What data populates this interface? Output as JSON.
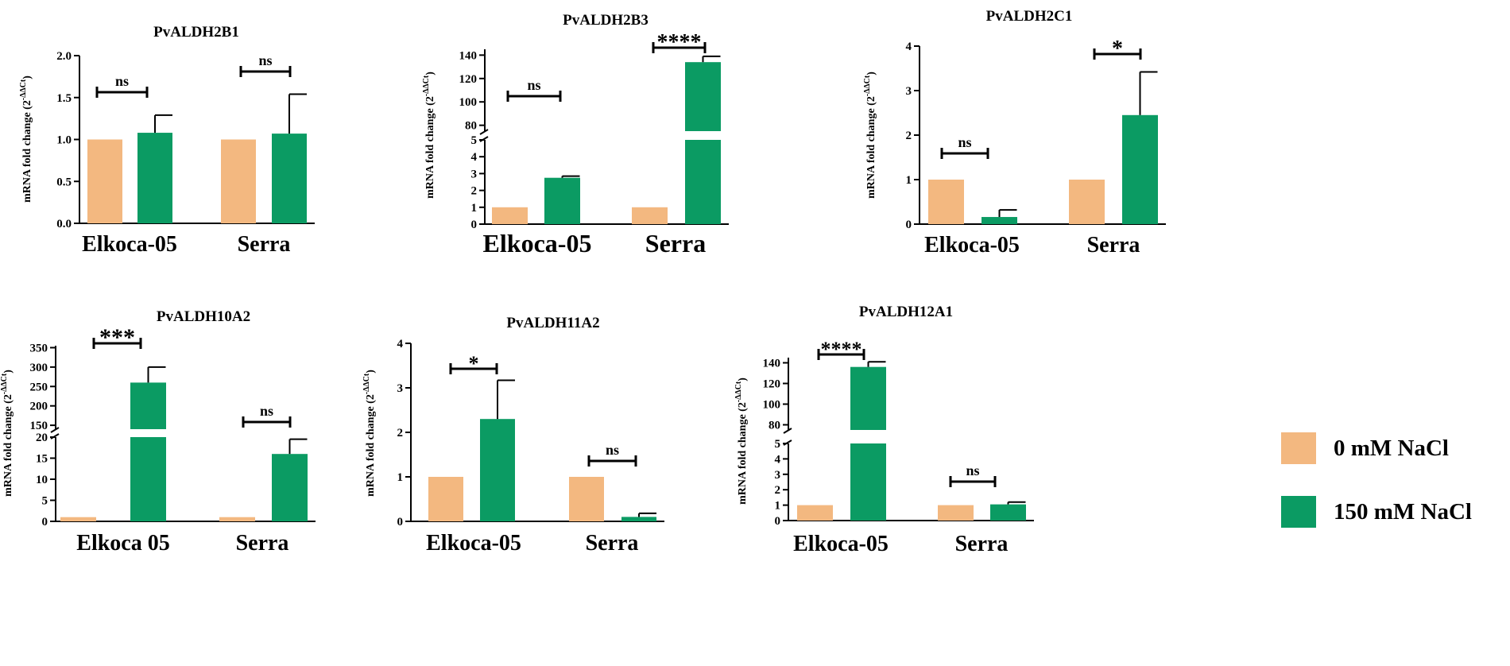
{
  "colors": {
    "control": "#F3B880",
    "treated": "#0B9B63",
    "axis": "#000000"
  },
  "legend": {
    "items": [
      {
        "label": "0 mM NaCl",
        "color": "#F3B880"
      },
      {
        "label": "150 mM NaCl",
        "color": "#0B9B63"
      }
    ]
  },
  "chart_data": [
    {
      "type": "bar",
      "title": "PvALDH2B1",
      "ylabel": "mRNA fold change (2",
      "ylabel_sup": "-ΔΔCt",
      "categories": [
        "Elkoca-05",
        "Serra"
      ],
      "series": [
        {
          "name": "0 mM NaCl",
          "values": [
            1.0,
            1.0
          ],
          "errors": [
            0,
            0
          ]
        },
        {
          "name": "150 mM NaCl",
          "values": [
            1.08,
            1.07
          ],
          "errors": [
            0.21,
            0.47
          ]
        }
      ],
      "yticks": [
        "0.0",
        "0.5",
        "1.0",
        "1.5",
        "2.0"
      ],
      "ylim": [
        0,
        2.0
      ],
      "significance": [
        "ns",
        "ns"
      ]
    },
    {
      "type": "bar",
      "title": "PvALDH2B3",
      "ylabel": "mRNA fold change (2",
      "ylabel_sup": "-ΔΔCt",
      "categories": [
        "Elkoca-05",
        "Serra"
      ],
      "series": [
        {
          "name": "0 mM NaCl",
          "values": [
            1.0,
            1.0
          ],
          "errors": [
            0,
            0
          ]
        },
        {
          "name": "150 mM NaCl",
          "values": [
            2.75,
            134
          ],
          "errors": [
            0.1,
            5
          ]
        }
      ],
      "broken_axis": {
        "lower_range": [
          0,
          5
        ],
        "upper_range": [
          75,
          145
        ]
      },
      "yticks_lower": [
        "0",
        "1",
        "2",
        "3",
        "4",
        "5"
      ],
      "yticks_upper": [
        "80",
        "100",
        "120",
        "140"
      ],
      "significance": [
        "ns",
        "****"
      ]
    },
    {
      "type": "bar",
      "title": "PvALDH2C1",
      "ylabel": "mRNA fold change (2",
      "ylabel_sup": "-ΔΔCt",
      "categories": [
        "Elkoca-05",
        "Serra"
      ],
      "series": [
        {
          "name": "0 mM NaCl",
          "values": [
            1.0,
            1.0
          ],
          "errors": [
            0,
            0
          ]
        },
        {
          "name": "150 mM NaCl",
          "values": [
            0.16,
            2.45
          ],
          "errors": [
            0.16,
            0.97
          ]
        }
      ],
      "yticks": [
        "0",
        "1",
        "2",
        "3",
        "4"
      ],
      "ylim": [
        0,
        4
      ],
      "significance": [
        "ns",
        "*"
      ]
    },
    {
      "type": "bar",
      "title": "PvALDH10A2",
      "ylabel": "mRNA fold change (2",
      "ylabel_sup": "-ΔΔCt",
      "categories": [
        "Elkoca 05",
        "Serra"
      ],
      "series": [
        {
          "name": "0 mM NaCl",
          "values": [
            1.0,
            1.0
          ],
          "errors": [
            0,
            0
          ]
        },
        {
          "name": "150 mM NaCl",
          "values": [
            260,
            16
          ],
          "errors": [
            40,
            3.5
          ]
        }
      ],
      "broken_axis": {
        "lower_range": [
          0,
          20
        ],
        "upper_range": [
          140,
          355
        ]
      },
      "yticks_lower": [
        "0",
        "5",
        "10",
        "15",
        "20"
      ],
      "yticks_upper": [
        "150",
        "200",
        "250",
        "300",
        "350"
      ],
      "significance": [
        "***",
        "ns"
      ]
    },
    {
      "type": "bar",
      "title": "PvALDH11A2",
      "ylabel": "mRNA fold change (2",
      "ylabel_sup": "-ΔΔCt",
      "categories": [
        "Elkoca-05",
        "Serra"
      ],
      "series": [
        {
          "name": "0 mM NaCl",
          "values": [
            1.0,
            1.0
          ],
          "errors": [
            0,
            0
          ]
        },
        {
          "name": "150 mM NaCl",
          "values": [
            2.3,
            0.1
          ],
          "errors": [
            0.87,
            0.08
          ]
        }
      ],
      "yticks": [
        "0",
        "1",
        "2",
        "3",
        "4"
      ],
      "ylim": [
        0,
        4
      ],
      "significance": [
        "*",
        "ns"
      ]
    },
    {
      "type": "bar",
      "title": "PvALDH12A1",
      "ylabel": "mRNA fold change (2",
      "ylabel_sup": "-ΔΔCt",
      "categories": [
        "Elkoca-05",
        "Serra"
      ],
      "series": [
        {
          "name": "0 mM NaCl",
          "values": [
            1.0,
            1.0
          ],
          "errors": [
            0,
            0
          ]
        },
        {
          "name": "150 mM NaCl",
          "values": [
            136,
            1.05
          ],
          "errors": [
            5,
            0.15
          ]
        }
      ],
      "broken_axis": {
        "lower_range": [
          0,
          5
        ],
        "upper_range": [
          75,
          145
        ]
      },
      "yticks_lower": [
        "0",
        "1",
        "2",
        "3",
        "4",
        "5"
      ],
      "yticks_upper": [
        "80",
        "100",
        "120",
        "140"
      ],
      "significance": [
        "****",
        "ns"
      ]
    }
  ]
}
